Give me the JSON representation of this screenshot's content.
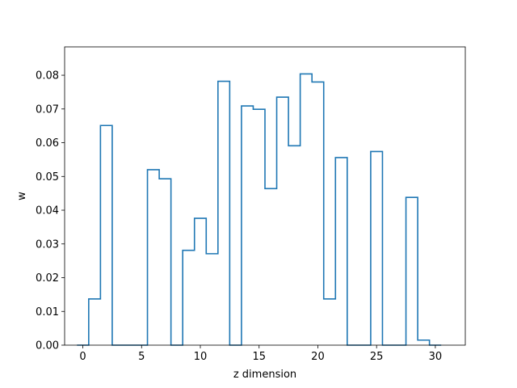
{
  "chart_data": {
    "type": "step",
    "xlabel": "z dimension",
    "ylabel": "w",
    "xlim": [
      -1.55,
      32.55
    ],
    "ylim": [
      0,
      0.0884
    ],
    "xticks": [
      0,
      5,
      10,
      15,
      20,
      25,
      30
    ],
    "yticks": [
      0.0,
      0.01,
      0.02,
      0.03,
      0.04,
      0.05,
      0.06,
      0.07,
      0.08
    ],
    "ytick_labels": [
      "0.00",
      "0.01",
      "0.02",
      "0.03",
      "0.04",
      "0.05",
      "0.06",
      "0.07",
      "0.08"
    ],
    "grid": false,
    "series": [
      {
        "color": "#1f77b4",
        "x": [
          0,
          1,
          2,
          3,
          4,
          5,
          6,
          7,
          8,
          9,
          10,
          11,
          12,
          13,
          14,
          15,
          16,
          17,
          18,
          19,
          20,
          21,
          22,
          23,
          24,
          25,
          26,
          27,
          28,
          29,
          30
        ],
        "values": [
          0.0,
          0.0137,
          0.0651,
          0.0,
          0.0,
          0.0,
          0.052,
          0.0493,
          0.0,
          0.0281,
          0.0376,
          0.0271,
          0.0782,
          0.0,
          0.0709,
          0.0699,
          0.0464,
          0.0735,
          0.0591,
          0.0804,
          0.078,
          0.0137,
          0.0556,
          0.0,
          0.0,
          0.0574,
          0.0,
          0.0,
          0.0438,
          0.0015,
          0.0
        ]
      }
    ]
  }
}
